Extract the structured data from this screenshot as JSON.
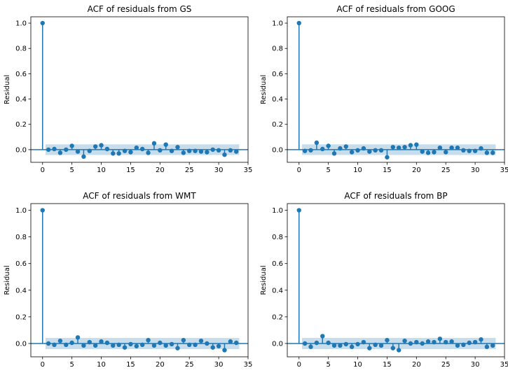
{
  "charts": [
    {
      "type": "stem",
      "title": "ACF of residuals from GS",
      "ylabel": "Residual",
      "xlabel": "",
      "xlim": [
        -2,
        35
      ],
      "ylim": [
        -0.1,
        1.05
      ],
      "xticks": [
        0,
        5,
        10,
        15,
        20,
        25,
        30,
        35
      ],
      "yticks": [
        0.0,
        0.2,
        0.4,
        0.6,
        0.8,
        1.0
      ],
      "confidence_band": 0.042,
      "lags": [
        0,
        1,
        2,
        3,
        4,
        5,
        6,
        7,
        8,
        9,
        10,
        11,
        12,
        13,
        14,
        15,
        16,
        17,
        18,
        19,
        20,
        21,
        22,
        23,
        24,
        25,
        26,
        27,
        28,
        29,
        30,
        31,
        32,
        33
      ],
      "values": [
        1.0,
        0.0,
        0.005,
        -0.025,
        0.0,
        0.03,
        -0.015,
        -0.055,
        -0.01,
        0.025,
        0.035,
        0.005,
        -0.03,
        -0.03,
        -0.01,
        -0.02,
        0.015,
        0.005,
        -0.025,
        0.05,
        -0.005,
        0.04,
        -0.01,
        0.02,
        -0.025,
        -0.01,
        -0.01,
        -0.015,
        -0.02,
        0.0,
        -0.005,
        -0.04,
        -0.005,
        -0.015
      ],
      "color": "#1f77b4",
      "band_color": "#1f77b4"
    },
    {
      "type": "stem",
      "title": "ACF of residuals from GOOG",
      "ylabel": "Residual",
      "xlabel": "",
      "xlim": [
        -2,
        35
      ],
      "ylim": [
        -0.1,
        1.05
      ],
      "xticks": [
        0,
        5,
        10,
        15,
        20,
        25,
        30,
        35
      ],
      "yticks": [
        0.0,
        0.2,
        0.4,
        0.6,
        0.8,
        1.0
      ],
      "confidence_band": 0.042,
      "lags": [
        0,
        1,
        2,
        3,
        4,
        5,
        6,
        7,
        8,
        9,
        10,
        11,
        12,
        13,
        14,
        15,
        16,
        17,
        18,
        19,
        20,
        21,
        22,
        23,
        24,
        25,
        26,
        27,
        28,
        29,
        30,
        31,
        32,
        33
      ],
      "values": [
        1.0,
        -0.01,
        -0.005,
        0.055,
        0.005,
        0.03,
        -0.03,
        0.01,
        0.025,
        -0.02,
        -0.005,
        0.01,
        -0.015,
        -0.005,
        -0.005,
        -0.06,
        0.02,
        0.015,
        0.02,
        0.035,
        0.04,
        -0.015,
        -0.025,
        -0.02,
        0.015,
        -0.02,
        0.015,
        0.015,
        -0.005,
        -0.01,
        -0.01,
        0.01,
        -0.025,
        -0.025
      ],
      "color": "#1f77b4",
      "band_color": "#1f77b4"
    },
    {
      "type": "stem",
      "title": "ACF of residuals from WMT",
      "ylabel": "Residual",
      "xlabel": "",
      "xlim": [
        -2,
        35
      ],
      "ylim": [
        -0.1,
        1.05
      ],
      "xticks": [
        0,
        5,
        10,
        15,
        20,
        25,
        30,
        35
      ],
      "yticks": [
        0.0,
        0.2,
        0.4,
        0.6,
        0.8,
        1.0
      ],
      "confidence_band": 0.042,
      "lags": [
        0,
        1,
        2,
        3,
        4,
        5,
        6,
        7,
        8,
        9,
        10,
        11,
        12,
        13,
        14,
        15,
        16,
        17,
        18,
        19,
        20,
        21,
        22,
        23,
        24,
        25,
        26,
        27,
        28,
        29,
        30,
        31,
        32,
        33
      ],
      "values": [
        1.0,
        0.0,
        -0.01,
        0.02,
        -0.01,
        0.005,
        0.045,
        -0.015,
        0.01,
        -0.015,
        0.015,
        0.005,
        -0.015,
        -0.01,
        -0.03,
        -0.005,
        -0.02,
        -0.01,
        0.025,
        -0.015,
        0.005,
        -0.015,
        -0.005,
        -0.035,
        0.025,
        -0.01,
        -0.01,
        0.02,
        0.0,
        -0.03,
        -0.02,
        -0.05,
        0.015,
        0.005
      ],
      "color": "#1f77b4",
      "band_color": "#1f77b4"
    },
    {
      "type": "stem",
      "title": "ACF of residuals from BP",
      "ylabel": "Residual",
      "xlabel": "",
      "xlim": [
        -2,
        35
      ],
      "ylim": [
        -0.1,
        1.05
      ],
      "xticks": [
        0,
        5,
        10,
        15,
        20,
        25,
        30,
        35
      ],
      "yticks": [
        0.0,
        0.2,
        0.4,
        0.6,
        0.8,
        1.0
      ],
      "confidence_band": 0.042,
      "lags": [
        0,
        1,
        2,
        3,
        4,
        5,
        6,
        7,
        8,
        9,
        10,
        11,
        12,
        13,
        14,
        15,
        16,
        17,
        18,
        19,
        20,
        21,
        22,
        23,
        24,
        25,
        26,
        27,
        28,
        29,
        30,
        31,
        32,
        33
      ],
      "values": [
        1.0,
        0.0,
        -0.025,
        0.005,
        0.055,
        0.005,
        -0.015,
        -0.015,
        -0.005,
        -0.025,
        -0.005,
        0.01,
        -0.035,
        -0.01,
        -0.015,
        0.025,
        -0.035,
        -0.05,
        0.02,
        0.0,
        0.01,
        0.0,
        0.015,
        0.01,
        0.035,
        0.01,
        0.015,
        -0.015,
        -0.01,
        0.005,
        0.01,
        0.03,
        -0.025,
        -0.015
      ],
      "color": "#1f77b4",
      "band_color": "#1f77b4"
    }
  ]
}
